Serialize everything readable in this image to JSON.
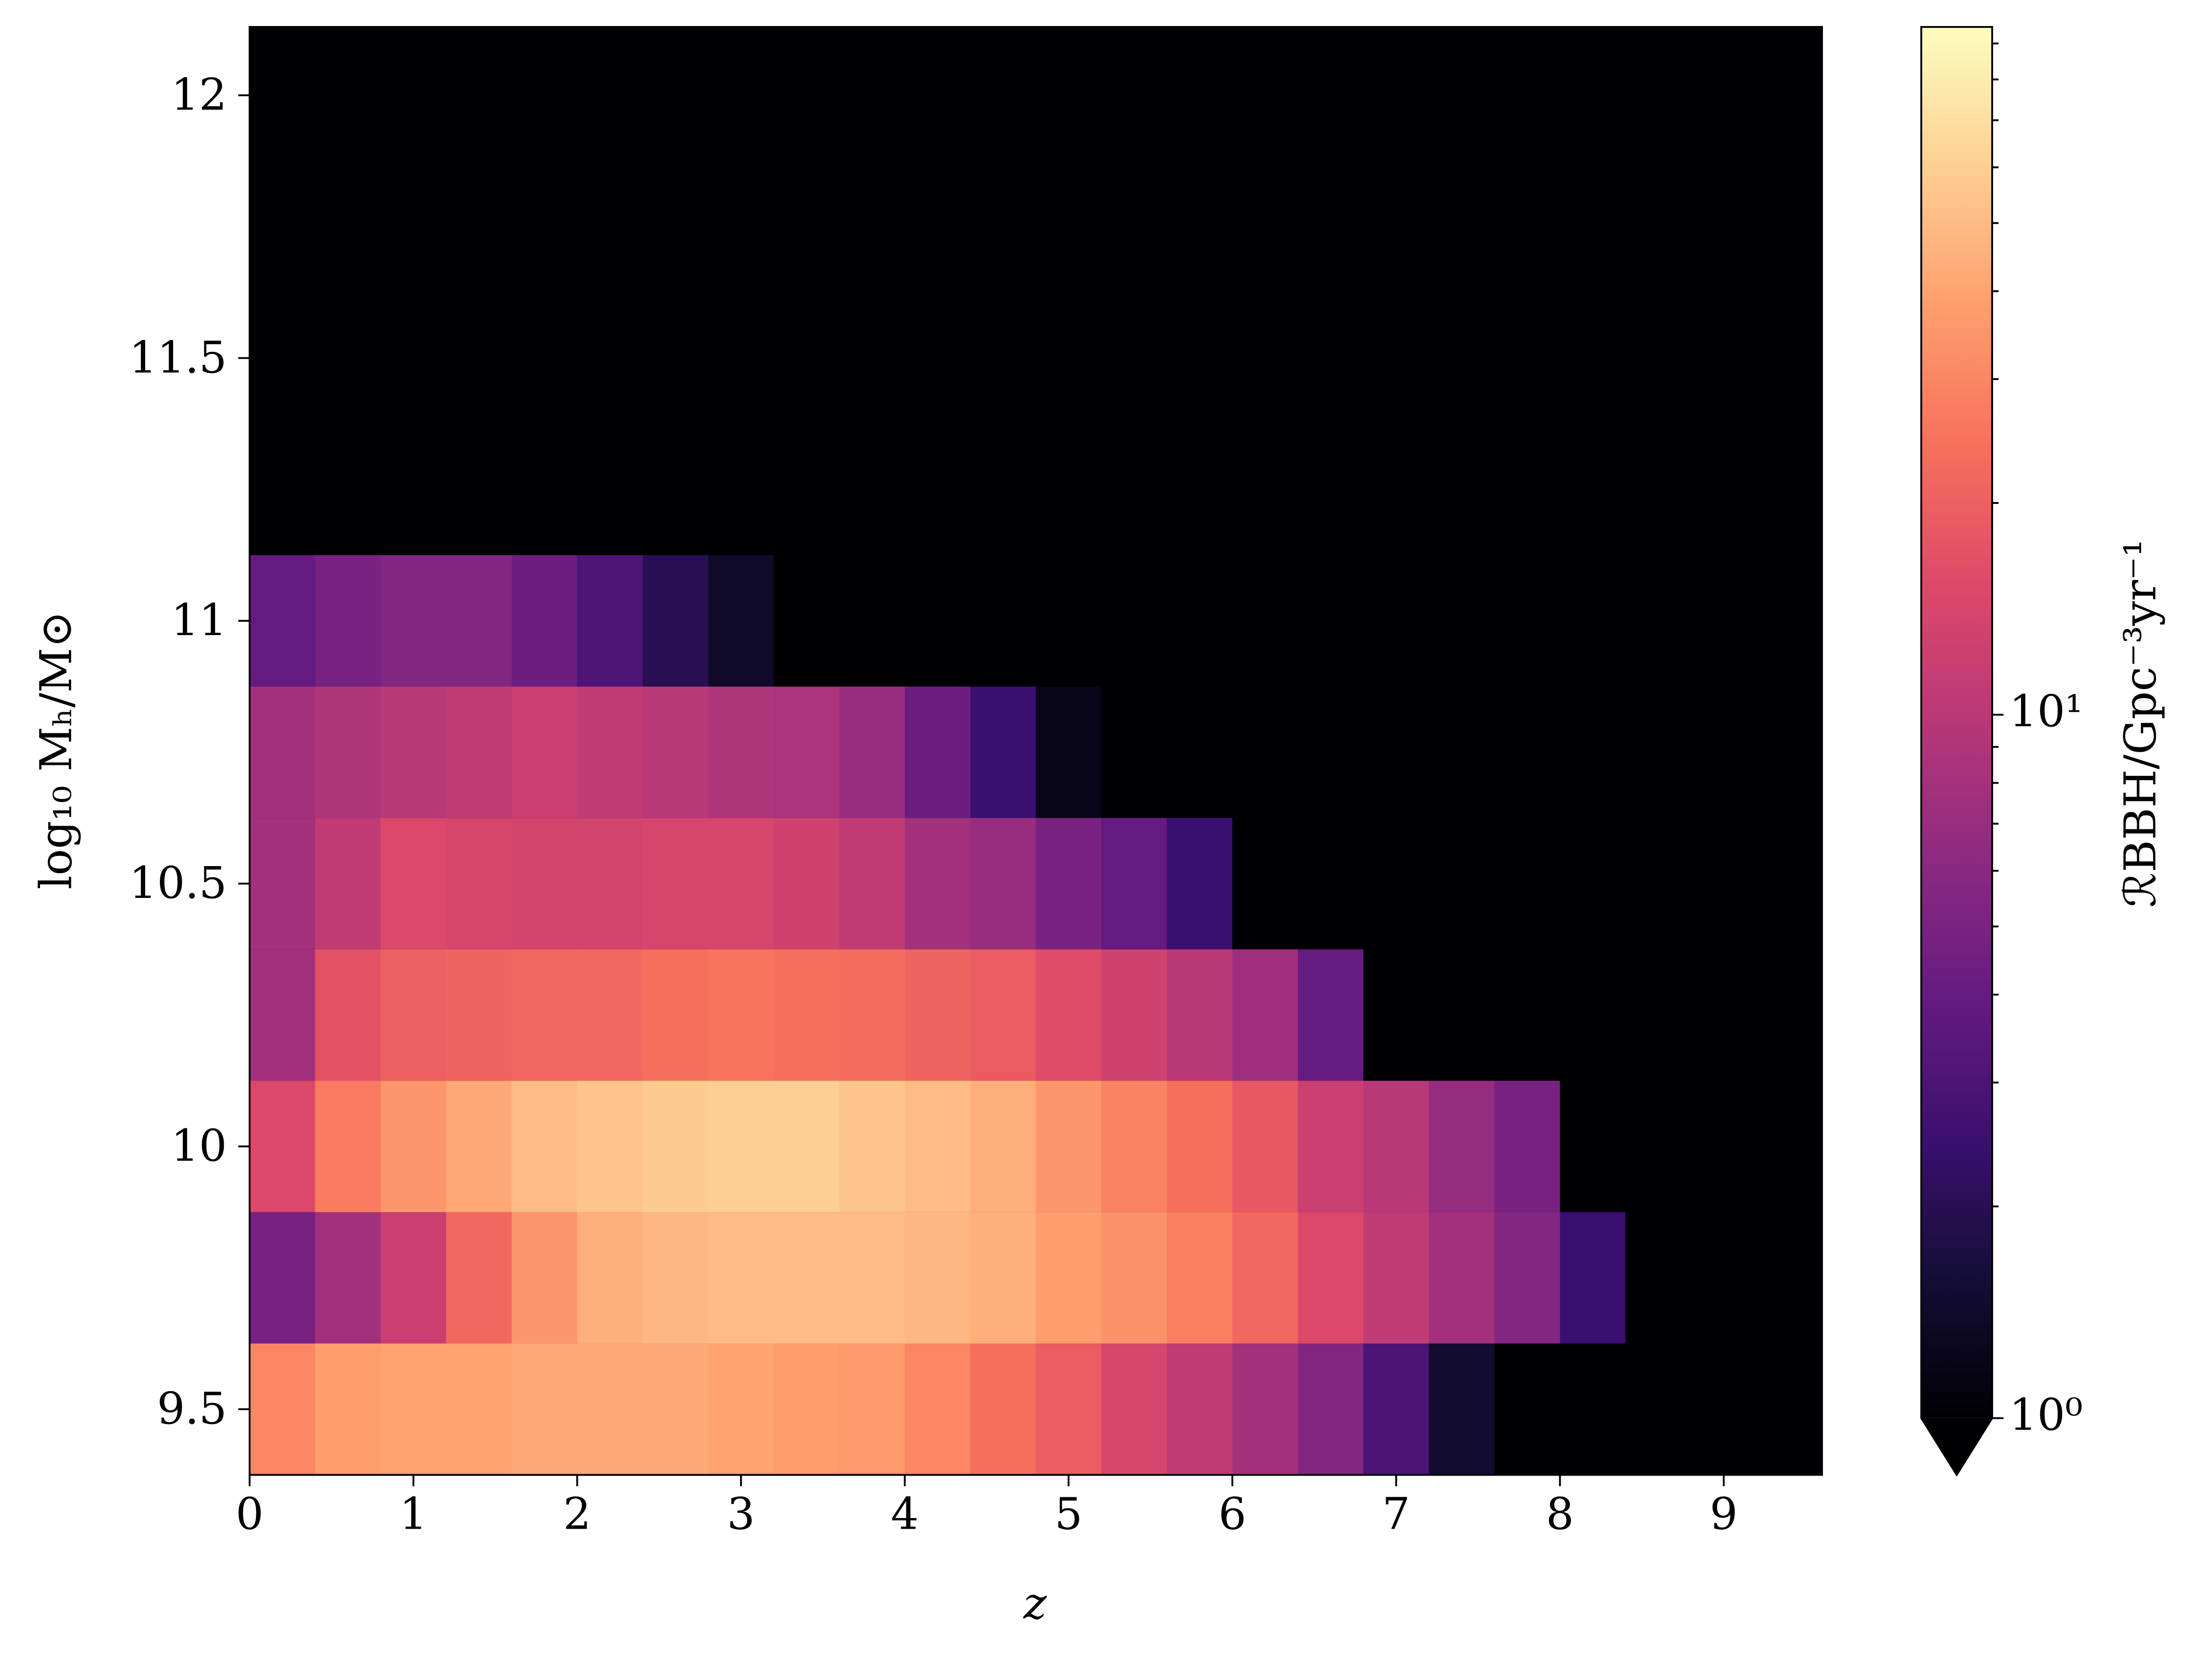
{
  "chart_data": {
    "type": "heatmap",
    "xlabel": "z",
    "ylabel": "log₁₀ Mₕ/M⊙",
    "colorbar_label": "ℛBBH/Gpc⁻³yr⁻¹",
    "colormap": "magma",
    "color_scale": "log",
    "xbins": [
      0,
      0.4,
      0.8,
      1.2,
      1.6,
      2.0,
      2.4,
      2.8,
      3.2,
      3.6,
      4.0,
      4.4,
      4.8,
      5.2,
      5.6,
      6.0,
      6.4,
      6.8,
      7.2,
      7.6,
      8.0,
      8.4,
      8.8,
      9.2,
      9.6
    ],
    "ybins": [
      9.375,
      9.625,
      9.875,
      10.125,
      10.375,
      10.625,
      10.875,
      11.125
    ],
    "values": [
      [
        30,
        38,
        40,
        40,
        42,
        42,
        42,
        40,
        38,
        36,
        30,
        24,
        19,
        14,
        11,
        8,
        5.5,
        3,
        1.5,
        0,
        0,
        0,
        0,
        0
      ],
      [
        4.9,
        7.8,
        12,
        22,
        35,
        44,
        48,
        50,
        50,
        50,
        48,
        44,
        38,
        33,
        28,
        22,
        15,
        11,
        7.8,
        5.6,
        2.5,
        0,
        0,
        0
      ],
      [
        15,
        27,
        35,
        42,
        50,
        55,
        58,
        60,
        60,
        55,
        50,
        44,
        35,
        29,
        24,
        18,
        12,
        10,
        6.8,
        4.9,
        0,
        0,
        0,
        0
      ],
      [
        7.8,
        17,
        20,
        21,
        22,
        22,
        24,
        25,
        24,
        23,
        21,
        19,
        16,
        13,
        10,
        7.5,
        4,
        0,
        0,
        0,
        0,
        0,
        0,
        0
      ],
      [
        8,
        11,
        15,
        14,
        13.5,
        13.5,
        14,
        14,
        13,
        11,
        8,
        7,
        5,
        3.9,
        2.5,
        0,
        0,
        0,
        0,
        0,
        0,
        0,
        0,
        0
      ],
      [
        8,
        9,
        10,
        11,
        12,
        11,
        10,
        9,
        8.5,
        7,
        4.3,
        2.5,
        1.2,
        0,
        0,
        0,
        0,
        0,
        0,
        0,
        0,
        0,
        0,
        0
      ],
      [
        3.9,
        4.9,
        5.6,
        5.6,
        4.3,
        3.1,
        2,
        1.4,
        0,
        0,
        0,
        0,
        0,
        0,
        0,
        0,
        0,
        0,
        0,
        0,
        0,
        0,
        0,
        0
      ]
    ],
    "xlim": [
      0,
      9.6
    ],
    "ylim": [
      9.375,
      12.13
    ],
    "xticks": [
      0,
      1,
      2,
      3,
      4,
      5,
      6,
      7,
      8,
      9
    ],
    "yticks": [
      9.5,
      10,
      10.5,
      11,
      11.5,
      12
    ],
    "clim": [
      1,
      95
    ],
    "cticks": [
      {
        "value": 1,
        "label": "10⁰"
      },
      {
        "value": 10,
        "label": "10¹"
      }
    ],
    "cminorticks": [
      2,
      3,
      4,
      5,
      6,
      7,
      8,
      9,
      20,
      30,
      40,
      50,
      60,
      70,
      80,
      90
    ],
    "colorbar_extend": "min"
  }
}
